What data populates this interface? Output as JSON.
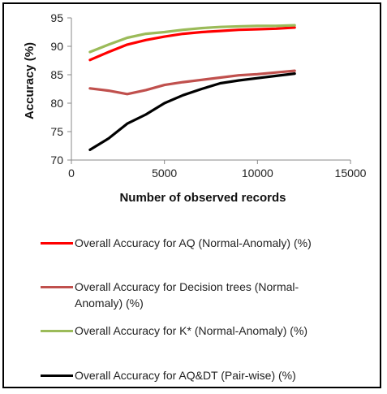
{
  "chart_data": {
    "type": "line",
    "xlabel": "Number of observed records",
    "ylabel": "Accuracy  (%)",
    "xlim": [
      0,
      15000
    ],
    "ylim": [
      70,
      95
    ],
    "xticks": [
      0,
      5000,
      10000,
      15000
    ],
    "yticks": [
      70,
      75,
      80,
      85,
      90,
      95
    ],
    "grid": false,
    "legend_position": "bottom",
    "series": [
      {
        "name": "Overall Accuracy for AQ (Normal-Anomaly) (%)",
        "color": "#ff0000",
        "x": [
          1000,
          2000,
          3000,
          4000,
          5000,
          6000,
          7000,
          8000,
          9000,
          10000,
          11000,
          12000
        ],
        "y": [
          87.6,
          89.0,
          90.3,
          91.1,
          91.7,
          92.2,
          92.5,
          92.7,
          92.9,
          93.0,
          93.1,
          93.3
        ]
      },
      {
        "name": "Overall Accuracy for Decision trees  (Normal-Anomaly) (%)",
        "color": "#c0504d",
        "x": [
          1000,
          2000,
          3000,
          4000,
          5000,
          6000,
          7000,
          8000,
          9000,
          10000,
          11000,
          12000
        ],
        "y": [
          82.6,
          82.2,
          81.6,
          82.3,
          83.2,
          83.7,
          84.1,
          84.5,
          84.9,
          85.1,
          85.4,
          85.7
        ]
      },
      {
        "name": "Overall Accuracy for K*  (Normal-Anomaly) (%)",
        "color": "#9bbb59",
        "x": [
          1000,
          2000,
          3000,
          4000,
          5000,
          6000,
          7000,
          8000,
          9000,
          10000,
          11000,
          12000
        ],
        "y": [
          89.0,
          90.3,
          91.5,
          92.2,
          92.5,
          92.9,
          93.2,
          93.4,
          93.5,
          93.6,
          93.6,
          93.7
        ]
      },
      {
        "name": "Overall Accuracy for AQ&DT (Pair-wise) (%)",
        "color": "#000000",
        "x": [
          1000,
          2000,
          3000,
          4000,
          5000,
          6000,
          7000,
          8000,
          9000,
          10000,
          11000,
          12000
        ],
        "y": [
          71.8,
          73.8,
          76.4,
          78.0,
          80.0,
          81.4,
          82.5,
          83.5,
          84.0,
          84.4,
          84.8,
          85.2
        ]
      }
    ]
  }
}
